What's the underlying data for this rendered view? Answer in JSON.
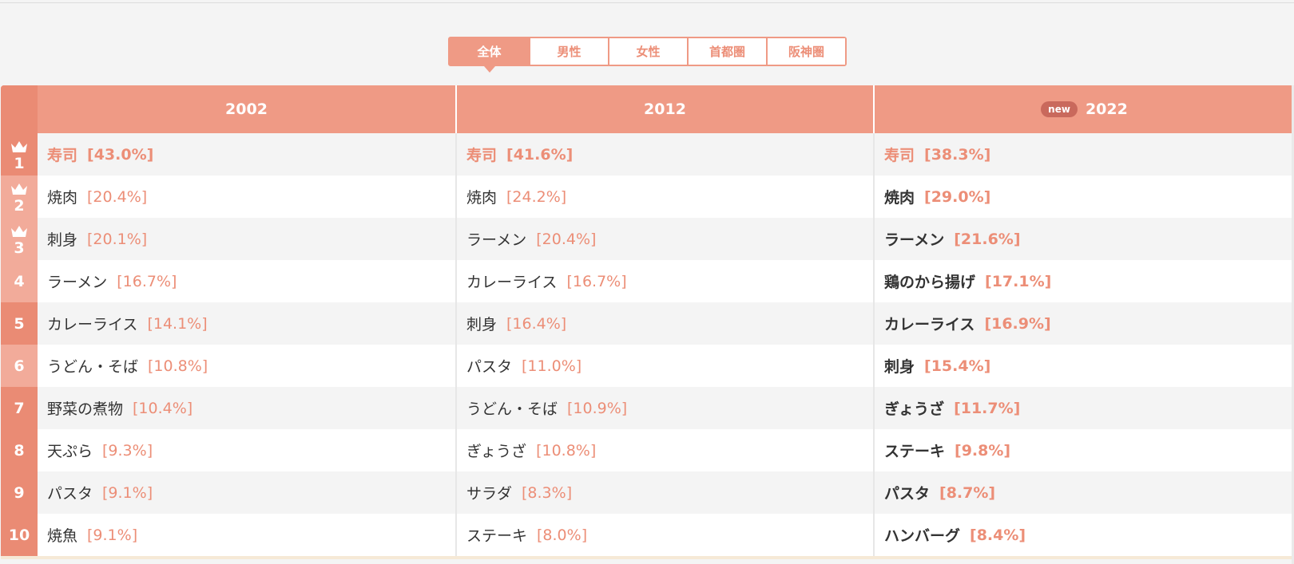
{
  "tabs": [
    {
      "label": "全体",
      "active": true
    },
    {
      "label": "男性",
      "active": false
    },
    {
      "label": "女性",
      "active": false
    },
    {
      "label": "首都圏",
      "active": false
    },
    {
      "label": "阪神圏",
      "active": false
    }
  ],
  "header": {
    "years": [
      "2002",
      "2012",
      "2022"
    ],
    "new_badge": "new"
  },
  "ranks": [
    "1",
    "2",
    "3",
    "4",
    "5",
    "6",
    "7",
    "8",
    "9",
    "10"
  ],
  "columns": {
    "y2002": [
      {
        "food": "寿司",
        "pct": "[43.0%]"
      },
      {
        "food": "焼肉",
        "pct": "[20.4%]"
      },
      {
        "food": "刺身",
        "pct": "[20.1%]"
      },
      {
        "food": "ラーメン",
        "pct": "[16.7%]"
      },
      {
        "food": "カレーライス",
        "pct": "[14.1%]"
      },
      {
        "food": "うどん・そば",
        "pct": "[10.8%]"
      },
      {
        "food": "野菜の煮物",
        "pct": "[10.4%]"
      },
      {
        "food": "天ぷら",
        "pct": "[9.3%]"
      },
      {
        "food": "パスタ",
        "pct": "[9.1%]"
      },
      {
        "food": "焼魚",
        "pct": "[9.1%]"
      }
    ],
    "y2012": [
      {
        "food": "寿司",
        "pct": "[41.6%]"
      },
      {
        "food": "焼肉",
        "pct": "[24.2%]"
      },
      {
        "food": "ラーメン",
        "pct": "[20.4%]"
      },
      {
        "food": "カレーライス",
        "pct": "[16.7%]"
      },
      {
        "food": "刺身",
        "pct": "[16.4%]"
      },
      {
        "food": "パスタ",
        "pct": "[11.0%]"
      },
      {
        "food": "うどん・そば",
        "pct": "[10.9%]"
      },
      {
        "food": "ぎょうざ",
        "pct": "[10.8%]"
      },
      {
        "food": "サラダ",
        "pct": "[8.3%]"
      },
      {
        "food": "ステーキ",
        "pct": "[8.0%]"
      }
    ],
    "y2022": [
      {
        "food": "寿司",
        "pct": "[38.3%]"
      },
      {
        "food": "焼肉",
        "pct": "[29.0%]"
      },
      {
        "food": "ラーメン",
        "pct": "[21.6%]"
      },
      {
        "food": "鶏のから揚げ",
        "pct": "[17.1%]"
      },
      {
        "food": "カレーライス",
        "pct": "[16.9%]"
      },
      {
        "food": "刺身",
        "pct": "[15.4%]"
      },
      {
        "food": "ぎょうざ",
        "pct": "[11.7%]"
      },
      {
        "food": "ステーキ",
        "pct": "[9.8%]"
      },
      {
        "food": "パスタ",
        "pct": "[8.7%]"
      },
      {
        "food": "ハンバーグ",
        "pct": "[8.4%]"
      }
    ]
  },
  "colors": {
    "accent": "#ef9a85",
    "rank_dark": "#ea8b74",
    "rank_light": "#f2ab9a",
    "percent_text": "#ec8e77"
  },
  "icons": {
    "top3": "crown-icon"
  }
}
